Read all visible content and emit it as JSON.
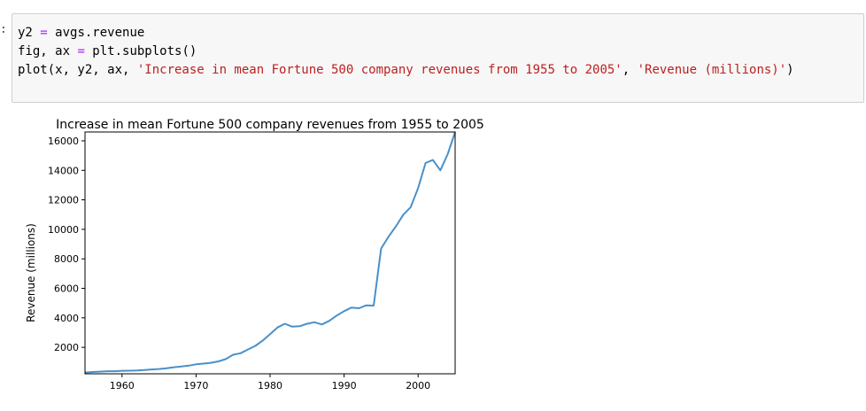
{
  "cell": {
    "prompt": ":",
    "lines": [
      [
        {
          "t": "y2 ",
          "c": ""
        },
        {
          "t": "=",
          "c": "op"
        },
        {
          "t": " avgs.revenue",
          "c": ""
        }
      ],
      [
        {
          "t": "fig, ax ",
          "c": ""
        },
        {
          "t": "=",
          "c": "op"
        },
        {
          "t": " plt.subplots()",
          "c": ""
        }
      ],
      [
        {
          "t": "plot(x, y2, ax, ",
          "c": ""
        },
        {
          "t": "'Increase in mean Fortune 500 company revenues from 1955 to 2005'",
          "c": "str"
        },
        {
          "t": ", ",
          "c": ""
        },
        {
          "t": "'Revenue (millions)'",
          "c": "str"
        },
        {
          "t": ")",
          "c": ""
        }
      ]
    ]
  },
  "chart_data": {
    "type": "line",
    "title": "Increase in mean Fortune 500 company revenues from 1955 to 2005",
    "xlabel": "",
    "ylabel": "Revenue (millions)",
    "xlim": [
      1955,
      2005
    ],
    "ylim": [
      207,
      16600
    ],
    "xticks": [
      1960,
      1970,
      1980,
      1990,
      2000
    ],
    "yticks": [
      2000,
      4000,
      6000,
      8000,
      10000,
      12000,
      14000,
      16000
    ],
    "line_color": "#4a90c8",
    "x": [
      1955,
      1956,
      1957,
      1958,
      1959,
      1960,
      1961,
      1962,
      1963,
      1964,
      1965,
      1966,
      1967,
      1968,
      1969,
      1970,
      1971,
      1972,
      1973,
      1974,
      1975,
      1976,
      1977,
      1978,
      1979,
      1980,
      1981,
      1982,
      1983,
      1984,
      1985,
      1986,
      1987,
      1988,
      1989,
      1990,
      1991,
      1992,
      1993,
      1994,
      1995,
      1996,
      1997,
      1998,
      1999,
      2000,
      2001,
      2002,
      2003,
      2004,
      2005
    ],
    "values": [
      290,
      330,
      350,
      380,
      380,
      410,
      420,
      430,
      460,
      500,
      530,
      580,
      650,
      700,
      760,
      850,
      900,
      950,
      1050,
      1200,
      1500,
      1600,
      1850,
      2100,
      2450,
      2900,
      3350,
      3600,
      3400,
      3430,
      3600,
      3700,
      3550,
      3800,
      4150,
      4450,
      4700,
      4650,
      4850,
      4830,
      8700,
      9500,
      10200,
      11000,
      11500,
      12800,
      14500,
      14700,
      14000,
      15100,
      16600
    ]
  }
}
